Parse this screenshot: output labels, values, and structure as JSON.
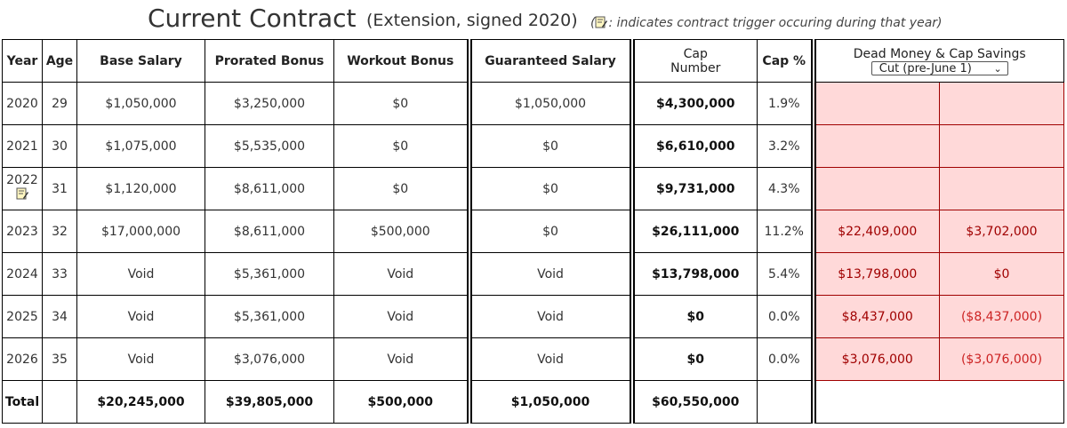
{
  "header": {
    "title": "Current Contract",
    "subtitle": "(Extension, signed 2020)",
    "note_prefix": "(",
    "note": ": indicates contract trigger occuring during that year",
    "note_suffix": ")",
    "note_icon": "note-icon"
  },
  "columns": {
    "year": "Year",
    "age": "Age",
    "base_salary": "Base Salary",
    "prorated_bonus": "Prorated Bonus",
    "workout_bonus": "Workout Bonus",
    "guaranteed_salary": "Guaranteed Salary",
    "cap_number_1": "Cap",
    "cap_number_2": "Number",
    "cap_pct": "Cap %",
    "dead_money": "Dead Money & Cap Savings",
    "cut_select": "Cut (pre-June 1)"
  },
  "rows": [
    {
      "year": "2020",
      "age": "29",
      "base": "$1,050,000",
      "prorated": "$3,250,000",
      "workout": "$0",
      "guaranteed": "$1,050,000",
      "cap": "$4,300,000",
      "pct": "1.9%",
      "dead": "",
      "savings": "",
      "trigger": false
    },
    {
      "year": "2021",
      "age": "30",
      "base": "$1,075,000",
      "prorated": "$5,535,000",
      "workout": "$0",
      "guaranteed": "$0",
      "cap": "$6,610,000",
      "pct": "3.2%",
      "dead": "",
      "savings": "",
      "trigger": false
    },
    {
      "year": "2022",
      "age": "31",
      "base": "$1,120,000",
      "prorated": "$8,611,000",
      "workout": "$0",
      "guaranteed": "$0",
      "cap": "$9,731,000",
      "pct": "4.3%",
      "dead": "",
      "savings": "",
      "trigger": true
    },
    {
      "year": "2023",
      "age": "32",
      "base": "$17,000,000",
      "prorated": "$8,611,000",
      "workout": "$500,000",
      "guaranteed": "$0",
      "cap": "$26,111,000",
      "pct": "11.2%",
      "dead": "$22,409,000",
      "savings": "$3,702,000",
      "trigger": false
    },
    {
      "year": "2024",
      "age": "33",
      "base": "Void",
      "prorated": "$5,361,000",
      "workout": "Void",
      "guaranteed": "Void",
      "cap": "$13,798,000",
      "pct": "5.4%",
      "dead": "$13,798,000",
      "savings": "$0",
      "trigger": false
    },
    {
      "year": "2025",
      "age": "34",
      "base": "Void",
      "prorated": "$5,361,000",
      "workout": "Void",
      "guaranteed": "Void",
      "cap": "$0",
      "pct": "0.0%",
      "dead": "$8,437,000",
      "savings": "($8,437,000)",
      "trigger": false
    },
    {
      "year": "2026",
      "age": "35",
      "base": "Void",
      "prorated": "$3,076,000",
      "workout": "Void",
      "guaranteed": "Void",
      "cap": "$0",
      "pct": "0.0%",
      "dead": "$3,076,000",
      "savings": "($3,076,000)",
      "trigger": false
    }
  ],
  "total": {
    "label": "Total",
    "base": "$20,245,000",
    "prorated": "$39,805,000",
    "workout": "$500,000",
    "guaranteed": "$1,050,000",
    "cap": "$60,550,000"
  },
  "colors": {
    "dead_bg": "#ffd9d9",
    "dead_border": "#a00000",
    "negative": "#cc2222"
  }
}
